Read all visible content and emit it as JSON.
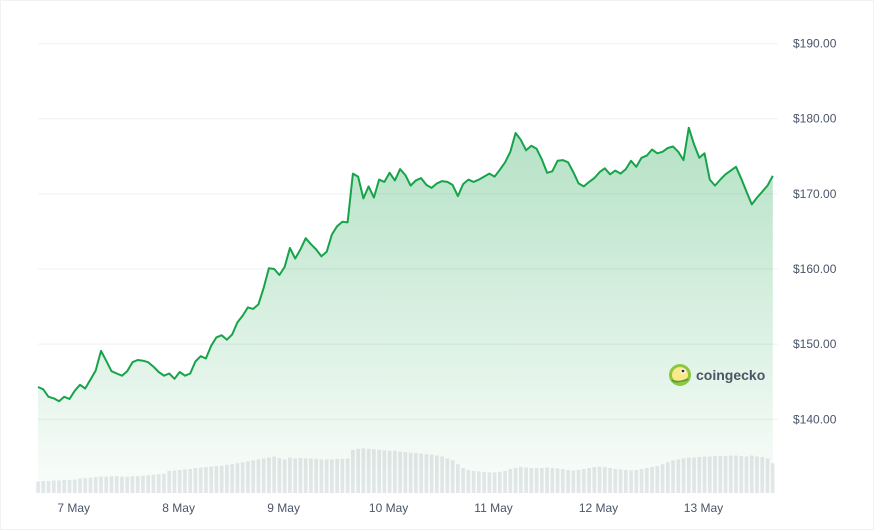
{
  "brand": {
    "name": "coingecko",
    "logo_icon": "gecko-logo-icon"
  },
  "colors": {
    "line": "#16a34a",
    "fill_top": "#16a34a",
    "grid": "#eef0f3",
    "volume": "#e6e8eb",
    "text": "#4a5568"
  },
  "chart_data": {
    "type": "area",
    "y_axis": {
      "position": "right",
      "ticks": [
        140,
        150,
        160,
        170,
        180,
        190
      ],
      "tick_labels": [
        "$140.00",
        "$150.00",
        "$160.00",
        "$170.00",
        "$180.00",
        "$190.00"
      ],
      "ylim": [
        129,
        195
      ]
    },
    "x_axis": {
      "ticks": [
        0.34,
        1.34,
        2.34,
        3.34,
        4.34,
        5.34,
        6.34
      ],
      "tick_labels": [
        "7 May",
        "8 May",
        "9 May",
        "10 May",
        "11 May",
        "12 May",
        "13 May"
      ],
      "xlim": [
        0,
        7.05
      ]
    },
    "grid": true,
    "legend": "none",
    "series": [
      {
        "x": [
          0.0,
          0.05,
          0.1,
          0.15,
          0.2,
          0.25,
          0.3,
          0.35,
          0.4,
          0.45,
          0.5,
          0.55,
          0.6,
          0.65,
          0.7,
          0.75,
          0.8,
          0.85,
          0.9,
          0.95,
          1.0,
          1.05,
          1.1,
          1.15,
          1.2,
          1.25,
          1.3,
          1.35,
          1.4,
          1.45,
          1.5,
          1.55,
          1.6,
          1.65,
          1.7,
          1.75,
          1.8,
          1.85,
          1.9,
          1.95,
          2.0,
          2.05,
          2.1,
          2.15,
          2.2,
          2.25,
          2.3,
          2.35,
          2.4,
          2.45,
          2.5,
          2.55,
          2.6,
          2.65,
          2.7,
          2.75,
          2.8,
          2.85,
          2.9,
          2.95,
          3.0,
          3.05,
          3.1,
          3.15,
          3.2,
          3.25,
          3.3,
          3.35,
          3.4,
          3.45,
          3.5,
          3.55,
          3.6,
          3.65,
          3.7,
          3.75,
          3.8,
          3.85,
          3.9,
          3.95,
          4.0,
          4.05,
          4.1,
          4.15,
          4.2,
          4.25,
          4.3,
          4.35,
          4.4,
          4.45,
          4.5,
          4.55,
          4.6,
          4.65,
          4.7,
          4.75,
          4.8,
          4.85,
          4.9,
          4.95,
          5.0,
          5.05,
          5.1,
          5.15,
          5.2,
          5.25,
          5.3,
          5.35,
          5.4,
          5.45,
          5.5,
          5.55,
          5.6,
          5.65,
          5.7,
          5.75,
          5.8,
          5.85,
          5.9,
          5.95,
          6.0,
          6.05,
          6.1,
          6.15,
          6.2,
          6.25,
          6.3,
          6.35,
          6.4,
          6.45,
          6.5,
          6.55,
          6.6,
          6.65,
          6.7,
          6.75,
          6.8,
          6.85,
          6.9,
          6.95,
          7.0
        ],
        "values": [
          144.3,
          144.0,
          143.0,
          142.8,
          142.4,
          143.0,
          142.7,
          143.8,
          144.6,
          144.1,
          145.3,
          146.5,
          149.1,
          147.8,
          146.4,
          146.1,
          145.8,
          146.4,
          147.6,
          147.9,
          147.8,
          147.6,
          147.0,
          146.3,
          145.8,
          146.1,
          145.4,
          146.3,
          145.8,
          146.1,
          147.7,
          148.4,
          148.1,
          149.8,
          150.9,
          151.2,
          150.6,
          151.3,
          152.9,
          153.8,
          154.9,
          154.7,
          155.3,
          157.5,
          160.1,
          160.0,
          159.2,
          160.3,
          162.8,
          161.4,
          162.6,
          164.1,
          163.3,
          162.6,
          161.7,
          162.3,
          164.6,
          165.7,
          166.3,
          166.2,
          172.7,
          172.3,
          169.4,
          171.0,
          169.5,
          171.9,
          171.6,
          172.8,
          171.8,
          173.3,
          172.5,
          171.1,
          171.8,
          172.1,
          171.2,
          170.8,
          171.4,
          171.7,
          171.6,
          171.2,
          169.7,
          171.3,
          171.9,
          171.6,
          171.9,
          172.3,
          172.7,
          172.3,
          173.2,
          174.2,
          175.6,
          178.1,
          177.2,
          175.8,
          176.4,
          176.0,
          174.6,
          172.8,
          173.0,
          174.4,
          174.5,
          174.2,
          172.9,
          171.4,
          171.0,
          171.6,
          172.1,
          172.9,
          173.4,
          172.6,
          173.1,
          172.7,
          173.3,
          174.4,
          173.6,
          174.8,
          175.1,
          175.9,
          175.4,
          175.6,
          176.1,
          176.3,
          175.6,
          174.5,
          178.8,
          176.6,
          174.8,
          175.4,
          171.9,
          171.1,
          171.9,
          172.6,
          173.1,
          173.6,
          172.0,
          170.3,
          168.6,
          169.5,
          170.3,
          171.1,
          172.4
        ]
      }
    ],
    "volume_x": [
      0.0,
      0.05,
      0.1,
      0.15,
      0.2,
      0.25,
      0.3,
      0.35,
      0.4,
      0.45,
      0.5,
      0.55,
      0.6,
      0.65,
      0.7,
      0.75,
      0.8,
      0.85,
      0.9,
      0.95,
      1.0,
      1.05,
      1.1,
      1.15,
      1.2,
      1.25,
      1.3,
      1.35,
      1.4,
      1.45,
      1.5,
      1.55,
      1.6,
      1.65,
      1.7,
      1.75,
      1.8,
      1.85,
      1.9,
      1.95,
      2.0,
      2.05,
      2.1,
      2.15,
      2.2,
      2.25,
      2.3,
      2.35,
      2.4,
      2.45,
      2.5,
      2.55,
      2.6,
      2.65,
      2.7,
      2.75,
      2.8,
      2.85,
      2.9,
      2.95,
      3.0,
      3.05,
      3.1,
      3.15,
      3.2,
      3.25,
      3.3,
      3.35,
      3.4,
      3.45,
      3.5,
      3.55,
      3.6,
      3.65,
      3.7,
      3.75,
      3.8,
      3.85,
      3.9,
      3.95,
      4.0,
      4.05,
      4.1,
      4.15,
      4.2,
      4.25,
      4.3,
      4.35,
      4.4,
      4.45,
      4.5,
      4.55,
      4.6,
      4.65,
      4.7,
      4.75,
      4.8,
      4.85,
      4.9,
      4.95,
      5.0,
      5.05,
      5.1,
      5.15,
      5.2,
      5.25,
      5.3,
      5.35,
      5.4,
      5.45,
      5.5,
      5.55,
      5.6,
      5.65,
      5.7,
      5.75,
      5.8,
      5.85,
      5.9,
      5.95,
      6.0,
      6.05,
      6.1,
      6.15,
      6.2,
      6.25,
      6.3,
      6.35,
      6.4,
      6.45,
      6.5,
      6.55,
      6.6,
      6.65,
      6.7,
      6.75,
      6.8,
      6.85,
      6.9,
      6.95,
      7.0
    ],
    "volume": [
      0.24,
      0.25,
      0.25,
      0.26,
      0.26,
      0.27,
      0.27,
      0.28,
      0.3,
      0.31,
      0.32,
      0.33,
      0.34,
      0.34,
      0.35,
      0.35,
      0.34,
      0.34,
      0.35,
      0.35,
      0.36,
      0.37,
      0.38,
      0.39,
      0.4,
      0.46,
      0.47,
      0.48,
      0.49,
      0.5,
      0.52,
      0.53,
      0.54,
      0.55,
      0.56,
      0.57,
      0.59,
      0.6,
      0.62,
      0.64,
      0.66,
      0.68,
      0.7,
      0.72,
      0.74,
      0.76,
      0.73,
      0.7,
      0.74,
      0.72,
      0.73,
      0.72,
      0.72,
      0.71,
      0.7,
      0.7,
      0.7,
      0.71,
      0.71,
      0.72,
      0.9,
      0.92,
      0.93,
      0.92,
      0.91,
      0.9,
      0.89,
      0.88,
      0.88,
      0.86,
      0.85,
      0.84,
      0.83,
      0.82,
      0.81,
      0.8,
      0.78,
      0.76,
      0.72,
      0.68,
      0.6,
      0.52,
      0.48,
      0.46,
      0.45,
      0.44,
      0.43,
      0.43,
      0.44,
      0.46,
      0.5,
      0.52,
      0.54,
      0.53,
      0.52,
      0.52,
      0.52,
      0.53,
      0.52,
      0.51,
      0.5,
      0.48,
      0.47,
      0.48,
      0.5,
      0.52,
      0.54,
      0.55,
      0.54,
      0.52,
      0.5,
      0.49,
      0.48,
      0.47,
      0.48,
      0.5,
      0.52,
      0.54,
      0.56,
      0.6,
      0.64,
      0.68,
      0.7,
      0.72,
      0.74,
      0.74,
      0.75,
      0.76,
      0.76,
      0.77,
      0.77,
      0.77,
      0.78,
      0.78,
      0.77,
      0.76,
      0.78,
      0.76,
      0.75,
      0.72,
      0.62
    ]
  }
}
